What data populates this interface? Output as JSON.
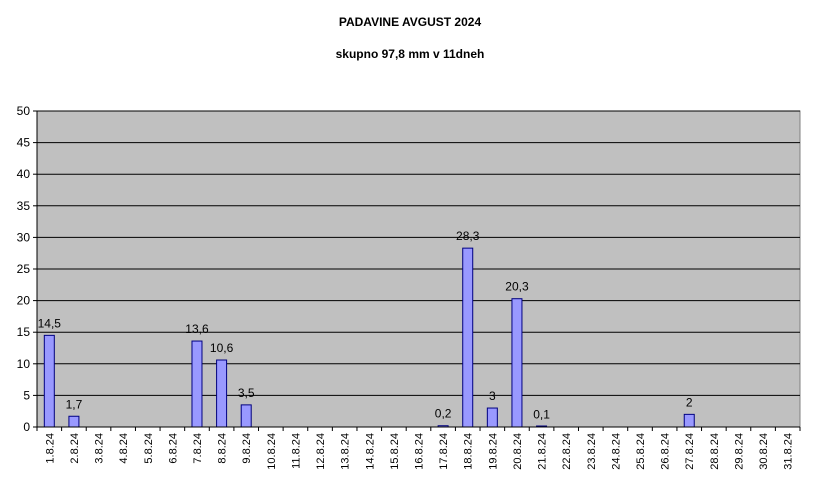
{
  "chart_data": {
    "type": "bar",
    "title": "PADAVINE AVGUST 2024",
    "subtitle": "skupno 97,8 mm v 11dneh",
    "xlabel": "",
    "ylabel": "",
    "ylim": [
      0,
      50
    ],
    "yticks": [
      "0",
      "5",
      "10",
      "15",
      "20",
      "25",
      "30",
      "35",
      "40",
      "45",
      "50"
    ],
    "grid": true,
    "legend": "none",
    "categories": [
      "1.8.24",
      "2.8.24",
      "3.8.24",
      "4.8.24",
      "5.8.24",
      "6.8.24",
      "7.8.24",
      "8.8.24",
      "9.8.24",
      "10.8.24",
      "11.8.24",
      "12.8.24",
      "13.8.24",
      "14.8.24",
      "15.8.24",
      "16.8.24",
      "17.8.24",
      "18.8.24",
      "19.8.24",
      "20.8.24",
      "21.8.24",
      "22.8.24",
      "23.8.24",
      "24.8.24",
      "25.8.24",
      "26.8.24",
      "27.8.24",
      "28.8.24",
      "29.8.24",
      "30.8.24",
      "31.8.24"
    ],
    "values": [
      14.5,
      1.7,
      0,
      0,
      0,
      0,
      13.6,
      10.6,
      3.5,
      0,
      0,
      0,
      0,
      0,
      0,
      0,
      0.2,
      28.3,
      3,
      20.3,
      0.1,
      0,
      0,
      0,
      0,
      0,
      2,
      0,
      0,
      0,
      0
    ],
    "data_labels": [
      "14,5",
      "1,7",
      "",
      "",
      "",
      "",
      "13,6",
      "10,6",
      "3,5",
      "",
      "",
      "",
      "",
      "",
      "",
      "",
      "0,2",
      "28,3",
      "3",
      "20,3",
      "0,1",
      "",
      "",
      "",
      "",
      "",
      "2",
      "",
      "",
      "",
      ""
    ],
    "colors": {
      "plot_background": "#c0c0c0",
      "bar_fill": "#9999ff",
      "bar_stroke": "#000080",
      "gridline": "#000000"
    }
  }
}
